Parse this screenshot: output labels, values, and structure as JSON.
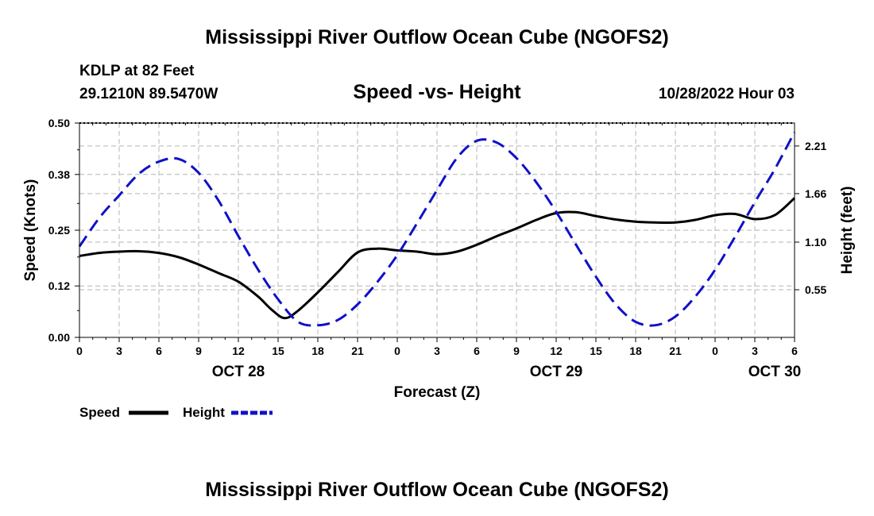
{
  "page": {
    "title": "Mississippi River Outflow Ocean Cube (NGOFS2)",
    "footer_title": "Mississippi River Outflow Ocean Cube (NGOFS2)",
    "station": "KDLP at 82 Feet",
    "location": "29.1210N  89.5470W",
    "subtitle": "Speed -vs- Height",
    "datetime": "10/28/2022 Hour 03"
  },
  "colors": {
    "speed": "#000000",
    "height": "#1010c8",
    "grid": "#b4b4b4"
  },
  "chart_data": {
    "type": "line",
    "title": "Speed -vs- Height",
    "xlabel": "Forecast (Z)",
    "ylabel": "Speed (Knots)",
    "y2label": "Height (feet)",
    "x_range": [
      0,
      54
    ],
    "ylim": [
      0,
      0.5
    ],
    "y2lim": [
      0,
      2.475
    ],
    "x_ticks": [
      0,
      3,
      6,
      9,
      12,
      15,
      18,
      21,
      24,
      27,
      30,
      33,
      36,
      39,
      42,
      45,
      48,
      51,
      54
    ],
    "x_tick_labels": [
      "0",
      "3",
      "6",
      "9",
      "12",
      "15",
      "18",
      "21",
      "0",
      "3",
      "6",
      "9",
      "12",
      "15",
      "18",
      "21",
      "0",
      "3",
      "6"
    ],
    "day_labels": [
      {
        "x": 12,
        "label": "OCT 28"
      },
      {
        "x": 36,
        "label": "OCT 29"
      },
      {
        "x": 52.5,
        "label": "OCT 30"
      }
    ],
    "y_ticks": [
      0.0,
      0.12,
      0.25,
      0.38,
      0.5
    ],
    "y_tick_labels": [
      "0.00",
      "0.12",
      "0.25",
      "0.38",
      "0.50"
    ],
    "y2_ticks": [
      0.55,
      1.1,
      1.66,
      2.21
    ],
    "y2_tick_labels": [
      "0.55",
      "1.10",
      "1.66",
      "2.21"
    ],
    "legend": [
      {
        "name": "Speed",
        "style": "solid"
      },
      {
        "name": "Height",
        "style": "dashed"
      }
    ],
    "series": [
      {
        "name": "Speed",
        "axis": "left",
        "style": "solid",
        "x": [
          0,
          1.5,
          3,
          4.5,
          6,
          7.5,
          9,
          10.5,
          12,
          13.5,
          14.5,
          15.5,
          16.5,
          18,
          19.5,
          21,
          22.5,
          24,
          25.5,
          27,
          28.5,
          30,
          31.5,
          33,
          34.5,
          36,
          37.5,
          39,
          40.5,
          42,
          43.5,
          45,
          46.5,
          48,
          49.5,
          51,
          52.5,
          54
        ],
        "values": [
          0.19,
          0.197,
          0.2,
          0.201,
          0.197,
          0.187,
          0.17,
          0.15,
          0.13,
          0.095,
          0.065,
          0.045,
          0.062,
          0.105,
          0.152,
          0.198,
          0.207,
          0.203,
          0.2,
          0.194,
          0.2,
          0.216,
          0.236,
          0.254,
          0.274,
          0.29,
          0.292,
          0.283,
          0.275,
          0.27,
          0.268,
          0.268,
          0.274,
          0.285,
          0.288,
          0.276,
          0.285,
          0.325
        ]
      },
      {
        "name": "Height",
        "axis": "right",
        "style": "dashed",
        "x": [
          0,
          1.5,
          3,
          4.5,
          6,
          7.5,
          9,
          10.5,
          12,
          13.5,
          15,
          16.5,
          18,
          19.5,
          21,
          22.5,
          24,
          25.5,
          27,
          28.5,
          30,
          31.5,
          33,
          34.5,
          36,
          37.5,
          39,
          40.5,
          42,
          43.5,
          45,
          46.5,
          48,
          49.5,
          51,
          52.5,
          54
        ],
        "values": [
          1.05,
          1.38,
          1.64,
          1.89,
          2.03,
          2.06,
          1.9,
          1.58,
          1.17,
          0.78,
          0.44,
          0.18,
          0.14,
          0.2,
          0.38,
          0.64,
          0.95,
          1.32,
          1.7,
          2.07,
          2.27,
          2.25,
          2.07,
          1.79,
          1.45,
          1.07,
          0.7,
          0.38,
          0.18,
          0.14,
          0.24,
          0.47,
          0.78,
          1.16,
          1.56,
          1.94,
          2.37
        ]
      }
    ]
  }
}
